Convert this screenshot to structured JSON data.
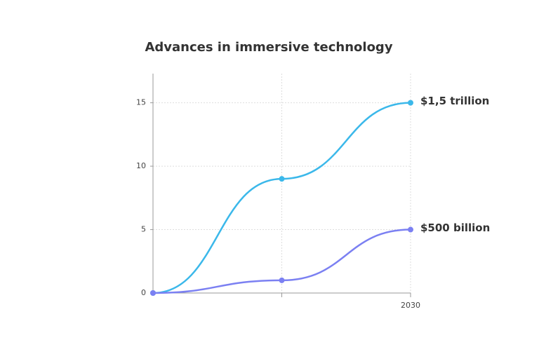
{
  "chart_data": {
    "type": "line",
    "title": "Advances in immersive technology",
    "categories": [
      null,
      null,
      "2030"
    ],
    "series": [
      {
        "color": "#3bb8ea",
        "values": [
          0,
          9,
          15
        ],
        "value_labels": [
          null,
          null,
          "$1,5 trillion"
        ]
      },
      {
        "color": "#7b80f2",
        "values": [
          0,
          1,
          5
        ],
        "value_labels": [
          null,
          null,
          "$500 billion"
        ]
      }
    ],
    "ylim": [
      0,
      17.3
    ],
    "yticks": [
      0,
      5,
      10,
      15
    ],
    "grid": true
  }
}
